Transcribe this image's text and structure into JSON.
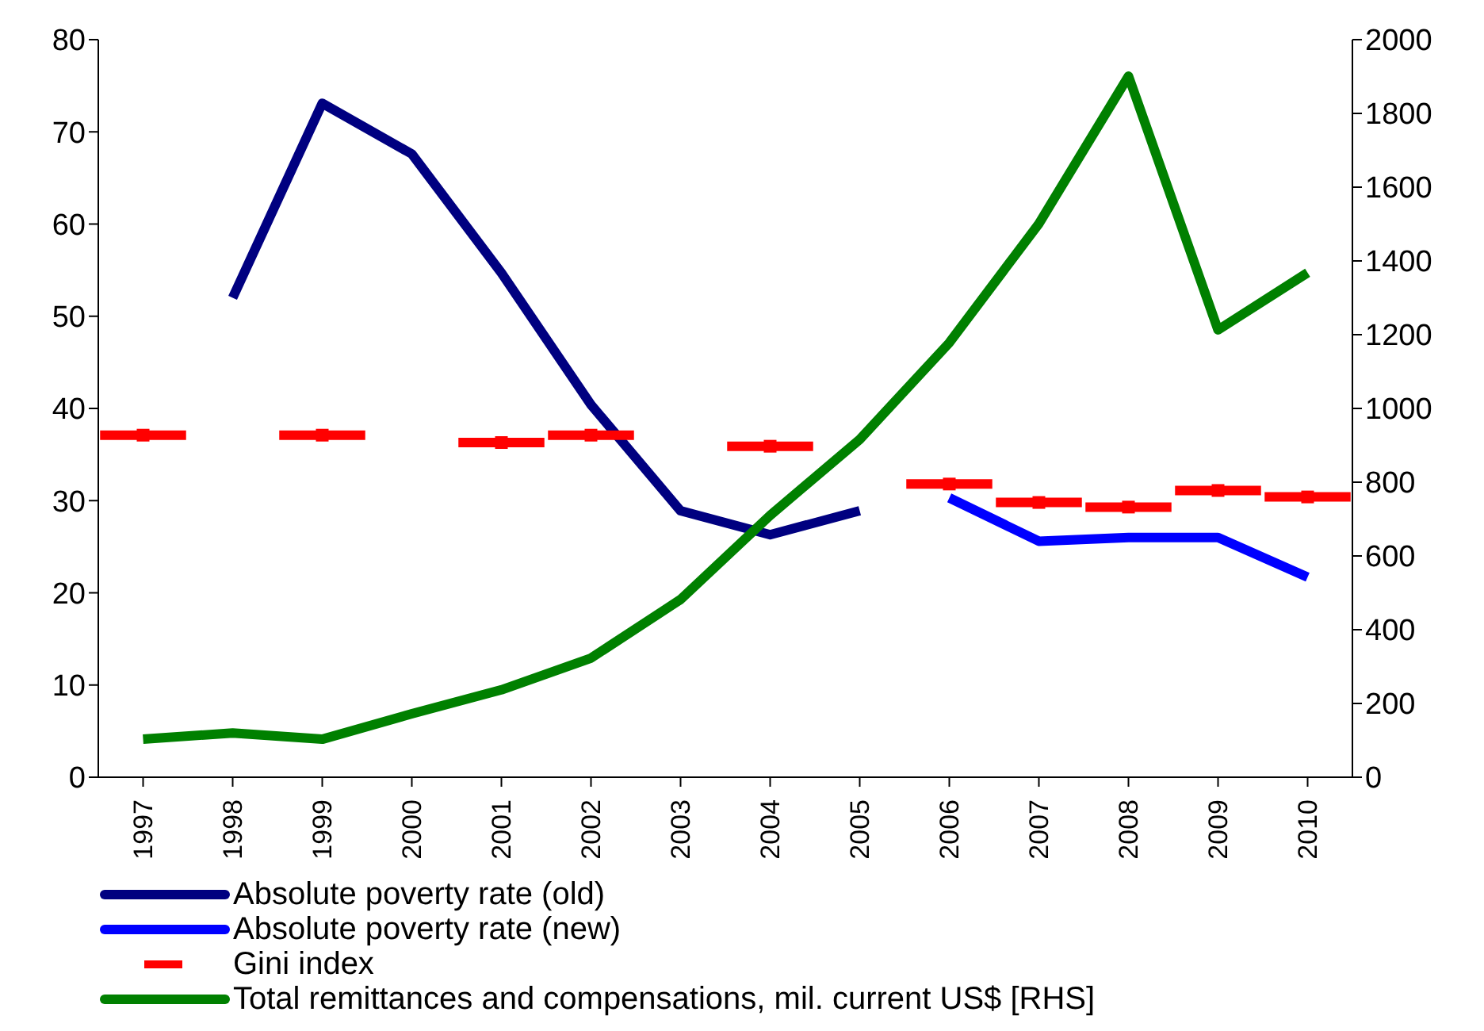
{
  "chart_data": {
    "type": "line",
    "x": [
      1997,
      1998,
      1999,
      2000,
      2001,
      2002,
      2003,
      2004,
      2005,
      2006,
      2007,
      2008,
      2009,
      2010
    ],
    "xlim": [
      1996.5,
      2010.5
    ],
    "xticks": [
      1997,
      1998,
      1999,
      2000,
      2001,
      2002,
      2003,
      2004,
      2005,
      2006,
      2007,
      2008,
      2009,
      2010
    ],
    "series": [
      {
        "name": "Absolute poverty rate (old)",
        "color": "#000080",
        "values": [
          null,
          52,
          73.1,
          67.6,
          54.7,
          40.4,
          28.9,
          26.3,
          28.9,
          null,
          null,
          null,
          null,
          null
        ]
      },
      {
        "name": "Absolute poverty rate (new)",
        "color": "#0000ff",
        "values": [
          null,
          null,
          null,
          null,
          null,
          null,
          null,
          null,
          null,
          30.3,
          25.6,
          26,
          26,
          21.7
        ]
      },
      {
        "name": "Gini index",
        "type": "scatter",
        "marker": "square",
        "color": "#ff0000",
        "values": [
          37.1,
          null,
          37.1,
          null,
          36.3,
          37.1,
          null,
          35.9,
          null,
          31.8,
          29.8,
          29.3,
          31.1,
          30.4
        ],
        "xerrors": [
          0.48,
          null,
          0.48,
          null,
          0.48,
          0.48,
          null,
          0.48,
          null,
          0.48,
          0.48,
          0.48,
          0.48,
          0.48
        ]
      },
      {
        "name": "Total remittances and compensations, mil. current US$ [RHS]",
        "color": "#008000",
        "axis": "y2",
        "values": [
          103,
          120,
          103,
          172,
          237,
          323,
          482,
          710,
          916,
          1178,
          1501,
          1901,
          1213,
          1368
        ]
      }
    ],
    "ylim": [
      0,
      80
    ],
    "yticks": [
      0,
      10,
      20,
      30,
      40,
      50,
      60,
      70,
      80
    ],
    "y2lim": [
      0,
      2000
    ],
    "y2ticks": [
      0,
      200,
      400,
      600,
      800,
      1000,
      1200,
      1400,
      1600,
      1800,
      2000
    ],
    "grid": false,
    "legend": "bottom"
  }
}
